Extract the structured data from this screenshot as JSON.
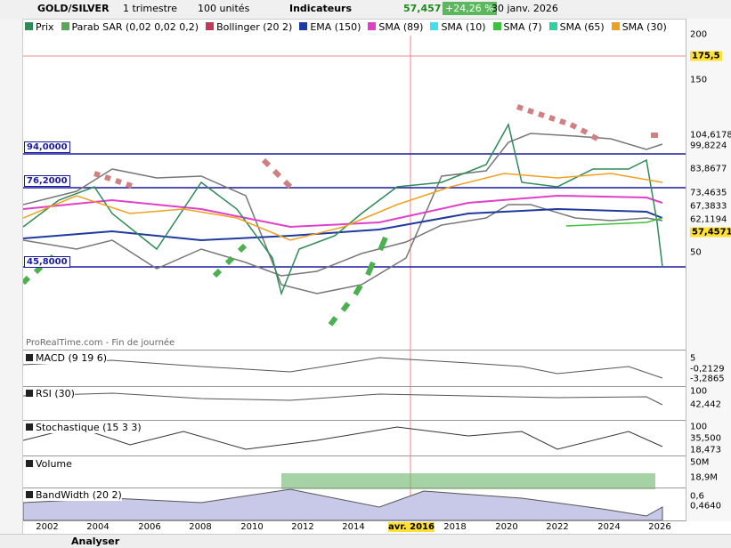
{
  "toolbar": {
    "symbol": "GOLD/SILVER",
    "period": "1 trimestre",
    "units": "100 unités",
    "indicators": "Indicateurs",
    "last": "57,4571",
    "change": "+24,26 %",
    "date": "30 janv. 2026"
  },
  "legend": [
    {
      "label": "Prix",
      "color": "#2e8b57"
    },
    {
      "label": "Parab SAR (0,02 0,02 0,2)",
      "color": "#5aa85a"
    },
    {
      "label": "Bollinger (20 2)",
      "color": "#c0395a"
    },
    {
      "label": "EMA (150)",
      "color": "#1f3a9e"
    },
    {
      "label": "SMA (89)",
      "color": "#e040c8"
    },
    {
      "label": "SMA (10)",
      "color": "#40e0f0"
    },
    {
      "label": "SMA (7)",
      "color": "#40c040"
    },
    {
      "label": "SMA (65)",
      "color": "#30d0a0"
    },
    {
      "label": "SMA (30)",
      "color": "#f0a020"
    }
  ],
  "price_axis": [
    "200",
    "175,5",
    "150",
    "104,6178",
    "99,8224",
    "83,8677",
    "73,4635",
    "67,3833",
    "62,1194",
    "57,4571",
    "50"
  ],
  "levels": [
    "94,0000",
    "76,2000",
    "45,8000"
  ],
  "watermark": "ProRealTime.com - Fin de journée",
  "panels": [
    {
      "title": "MACD (9 19 6)",
      "labels": [
        "5",
        "-0,2129",
        "-3,2865"
      ]
    },
    {
      "title": "RSI (30)",
      "labels": [
        "100",
        "42,442"
      ]
    },
    {
      "title": "Stochastique (15 3 3)",
      "labels": [
        "100",
        "35,500",
        "18,473"
      ]
    },
    {
      "title": "Volume",
      "labels": [
        "50M",
        "18,9M"
      ]
    },
    {
      "title": "BandWidth (20 2)",
      "labels": [
        "0,6",
        "0,4640"
      ]
    }
  ],
  "x_axis": [
    "2002",
    "2004",
    "2006",
    "2008",
    "2010",
    "2012",
    "2014",
    "avr. 2016",
    "2018",
    "2020",
    "2022",
    "2024",
    "2026"
  ],
  "bottom": {
    "analyse": "Analyser"
  }
}
